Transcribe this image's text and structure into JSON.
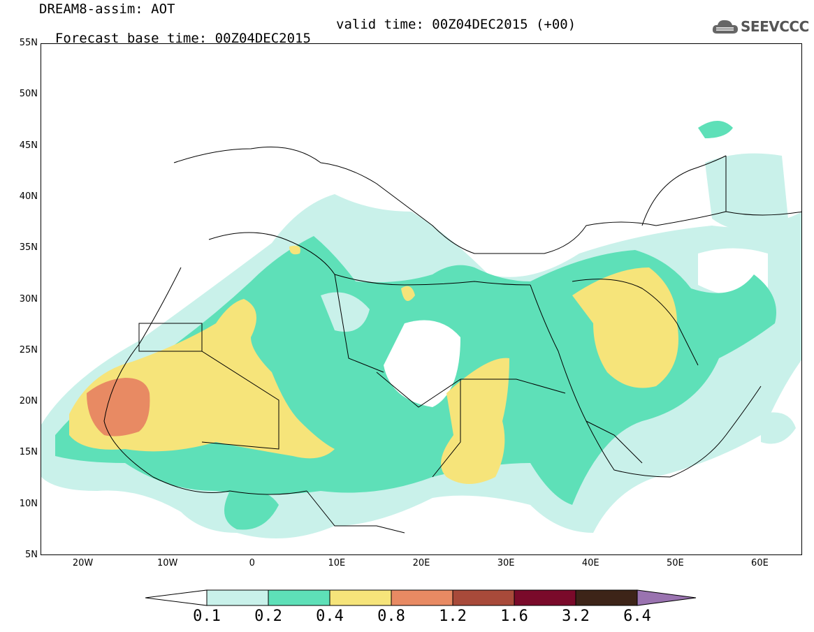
{
  "title": {
    "line1": "DREAM8-assim: AOT",
    "base_time": "Forecast base time: 00Z04DEC2015",
    "valid_time": "valid time: 00Z04DEC2015 (+00)"
  },
  "logo": {
    "text": "SEEVCCC",
    "icon": "cloud-icon"
  },
  "axes": {
    "lat_labels": [
      "55N",
      "50N",
      "45N",
      "40N",
      "35N",
      "30N",
      "25N",
      "20N",
      "15N",
      "10N",
      "5N"
    ],
    "lon_labels": [
      "20W",
      "10W",
      "0",
      "10E",
      "20E",
      "30E",
      "40E",
      "50E",
      "60E"
    ],
    "lat_range": [
      5,
      55
    ],
    "lon_range": [
      -25,
      65
    ]
  },
  "legend": {
    "labels": [
      "0.1",
      "0.2",
      "0.4",
      "0.8",
      "1.2",
      "1.6",
      "3.2",
      "6.4"
    ],
    "colors": [
      "#ffffff",
      "#c9f1ea",
      "#5ee0b8",
      "#f6e47a",
      "#e88a63",
      "#a84a3a",
      "#7a0a2a",
      "#3d2418",
      "#9a73b0"
    ]
  }
}
